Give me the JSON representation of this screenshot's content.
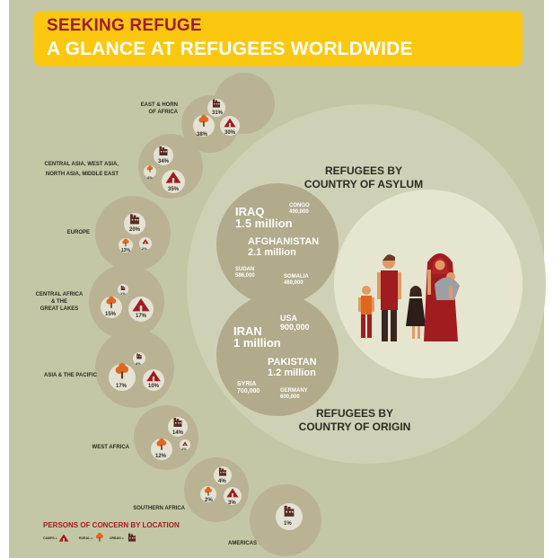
{
  "title": {
    "line1": "SEEKING REFUGE",
    "line2": "A GLANCE AT REFUGEES WORLDWIDE"
  },
  "colors": {
    "background": "#c3c7a6",
    "banner": "#fcc80f",
    "accent_red": "#a01c1e"
  },
  "regions": [
    {
      "name_line1": "EAST & HORN",
      "name_line2": "OF AFRICA",
      "urban": "31%",
      "rural": "38%",
      "camps": "30%"
    },
    {
      "name_line1": "CENTRAL ASIA, WEST ASIA,",
      "name_line2": "NORTH ASIA, MIDDLE EAST",
      "urban": "34%",
      "rural": "2%",
      "camps": "35%"
    },
    {
      "name": "EUROPE",
      "urban": "20%",
      "rural": "13%",
      "camps": "2%"
    },
    {
      "name_line1": "CENTRAL AFRICA",
      "name_line2": "& THE",
      "name_line3": "GREAT LAKES",
      "urban": "1%",
      "rural": "15%",
      "camps": "17%"
    },
    {
      "name": "ASIA & THE PACIFIC",
      "urban": "4%",
      "rural": "17%",
      "camps": "10%"
    },
    {
      "name": "WEST AFRICA",
      "urban": "14%",
      "rural": "12%",
      "camps": "1%"
    },
    {
      "name": "SOUTHERN AFRICA",
      "urban": "4%",
      "rural": "2%",
      "camps": "3%"
    },
    {
      "name": "AMERICAS",
      "urban": "1%"
    }
  ],
  "asylum": {
    "heading_line1": "REFUGEES BY",
    "heading_line2": "COUNTRY OF ASYLUM",
    "countries": [
      {
        "name": "IRAQ",
        "value": "1.5 million"
      },
      {
        "name": "CONGO",
        "value": "400,000"
      },
      {
        "name": "AFGHANISTAN",
        "value": "2.1 million"
      },
      {
        "name": "SUDAN",
        "value": "586,000"
      },
      {
        "name": "SOMALIA",
        "value": "460,000"
      }
    ]
  },
  "origin": {
    "heading_line1": "REFUGEES BY",
    "heading_line2": "COUNTRY OF ORIGIN",
    "countries": [
      {
        "name": "IRAN",
        "value": "1 million"
      },
      {
        "name": "USA",
        "value": "900,000"
      },
      {
        "name": "PAKISTAN",
        "value": "1.2 million"
      },
      {
        "name": "SYRIA",
        "value": "700,000"
      },
      {
        "name": "GERMANY",
        "value": "600,000"
      }
    ]
  },
  "legend": {
    "title": "PERSONS OF CONCERN BY LOCATION",
    "camps": "CAMPS =",
    "rural": "RURAL =",
    "urban": "URBAN ="
  },
  "icons": [
    "camp-icon",
    "tree-icon",
    "house-icon",
    "family-illustration"
  ]
}
